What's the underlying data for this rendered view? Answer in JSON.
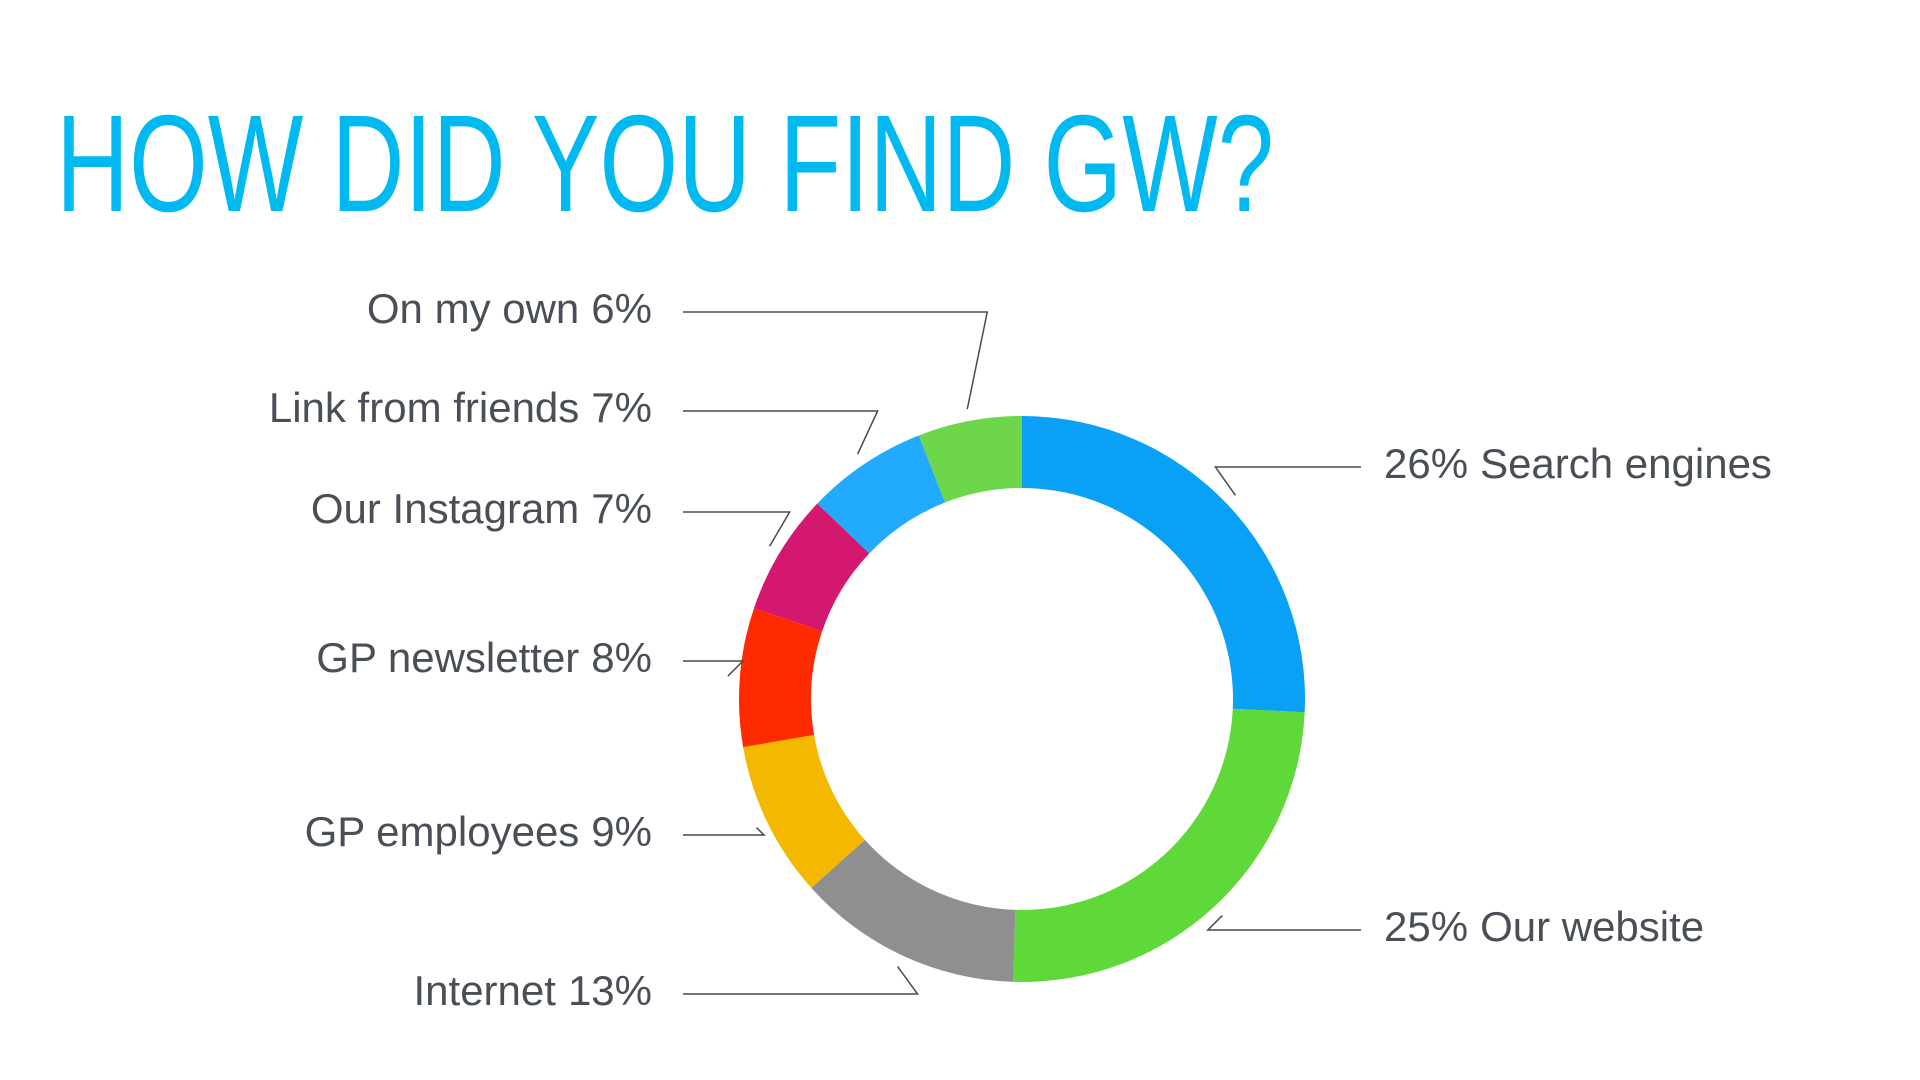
{
  "chart_data": {
    "type": "donut",
    "title": "HOW DID YOU FIND GW?",
    "categories": [
      "Search engines",
      "Our website",
      "Internet",
      "GP employees",
      "GP newsletter",
      "Our Instagram",
      "Link from friends",
      "On my own"
    ],
    "values": [
      26,
      25,
      13,
      9,
      8,
      7,
      7,
      6
    ],
    "value_labels": [
      "26%",
      "25%",
      "13%",
      "9%",
      "8%",
      "7%",
      "7%",
      "6%"
    ],
    "colors": [
      "#0aa0f5",
      "#5fd83a",
      "#8f8f8f",
      "#f5b800",
      "#ff2a00",
      "#d4176f",
      "#22aaff",
      "#6ed64a"
    ]
  }
}
